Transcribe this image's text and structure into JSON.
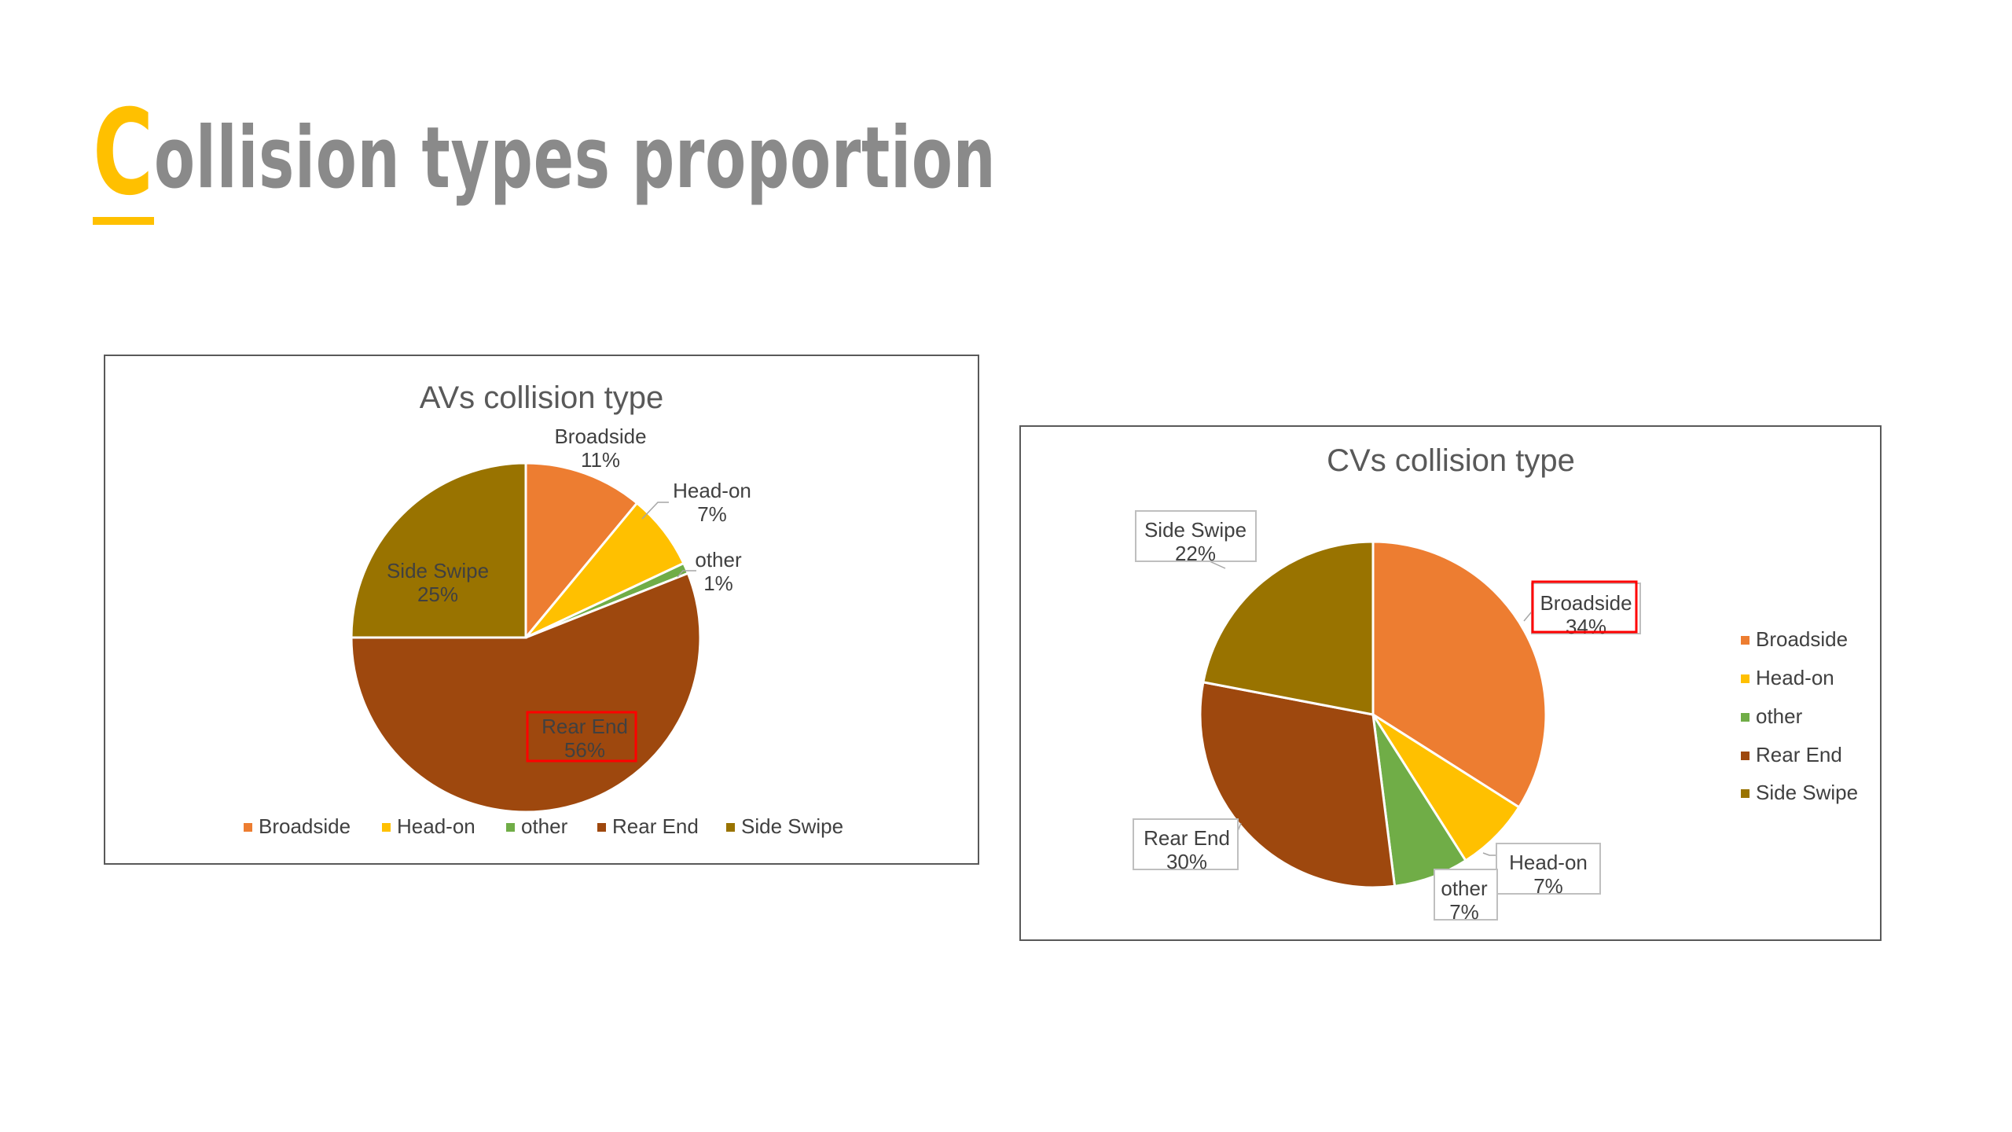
{
  "page": {
    "title_first_letter": "C",
    "title_rest": "ollision types proportion"
  },
  "colors": {
    "Broadside": "#ED7D31",
    "Head-on": "#FFC000",
    "other": "#70AD47",
    "Rear End": "#9E480E",
    "Side Swipe": "#997300",
    "title_accent": "#FFC000",
    "title_text": "#8a8a8a",
    "highlight_box": "#FF0000"
  },
  "chart_data": [
    {
      "type": "pie",
      "title": "AVs collision type",
      "categories": [
        "Broadside",
        "Head-on",
        "other",
        "Rear End",
        "Side Swipe"
      ],
      "values": [
        11,
        7,
        1,
        56,
        25
      ],
      "labels": [
        "11%",
        "7%",
        "1%",
        "56%",
        "25%"
      ],
      "legend_position": "bottom",
      "highlighted_category": "Rear End"
    },
    {
      "type": "pie",
      "title": "CVs collision type",
      "categories": [
        "Broadside",
        "Head-on",
        "other",
        "Rear End",
        "Side Swipe"
      ],
      "values": [
        34,
        7,
        7,
        30,
        22
      ],
      "labels": [
        "34%",
        "7%",
        "7%",
        "30%",
        "22%"
      ],
      "legend_position": "right",
      "highlighted_category": "Broadside"
    }
  ]
}
